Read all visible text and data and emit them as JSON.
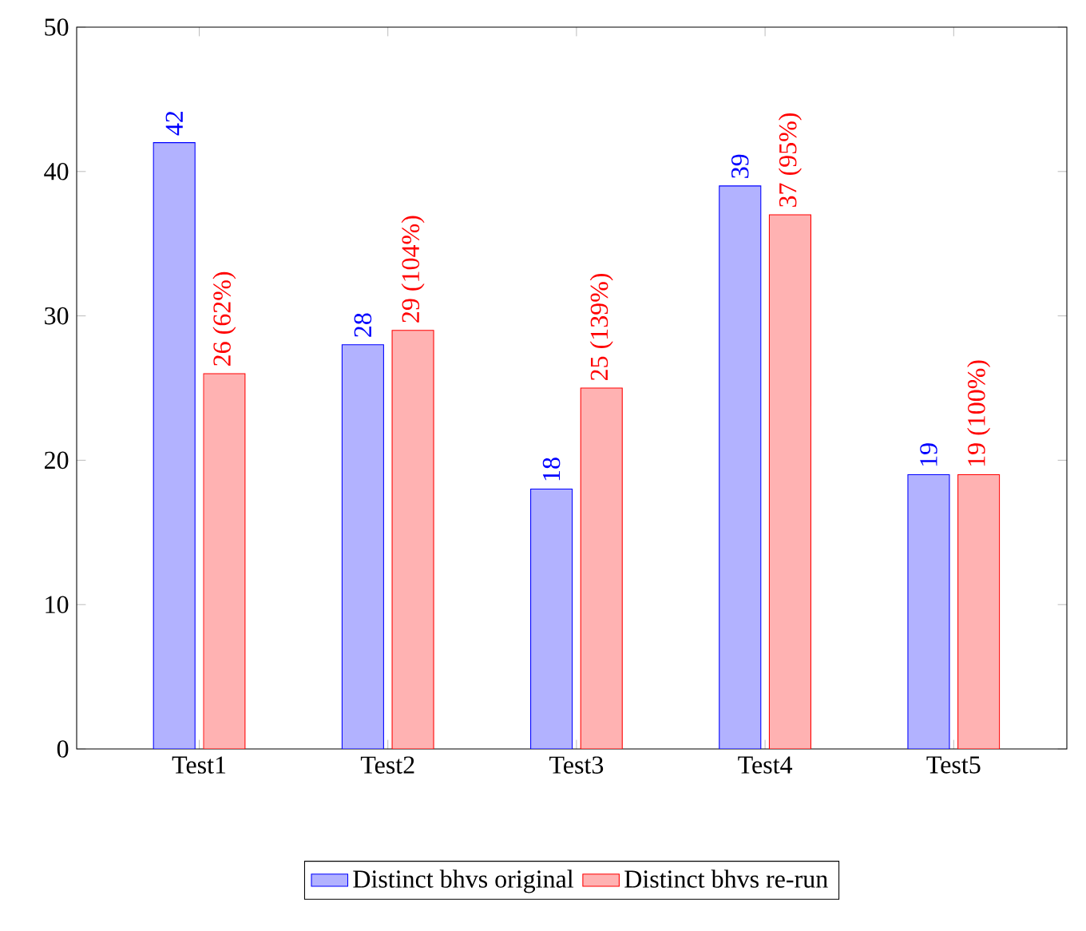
{
  "chart_data": {
    "type": "bar",
    "categories": [
      "Test1",
      "Test2",
      "Test3",
      "Test4",
      "Test5"
    ],
    "series": [
      {
        "name": "Distinct bhvs original",
        "color": "#0000ff",
        "values": [
          42,
          28,
          18,
          39,
          19
        ],
        "value_labels": [
          "42",
          "28",
          "18",
          "39",
          "19"
        ]
      },
      {
        "name": "Distinct bhvs re-run",
        "color": "#ff0000",
        "values": [
          26,
          29,
          25,
          37,
          19
        ],
        "value_labels": [
          "26 (62%)",
          "29 (104%)",
          "25 (139%)",
          "37 (95%)",
          "19 (100%)"
        ]
      }
    ],
    "ylim": [
      0,
      50
    ],
    "yticks": [
      0,
      10,
      20,
      30,
      40,
      50
    ],
    "grid": false,
    "legend": "bottom"
  }
}
